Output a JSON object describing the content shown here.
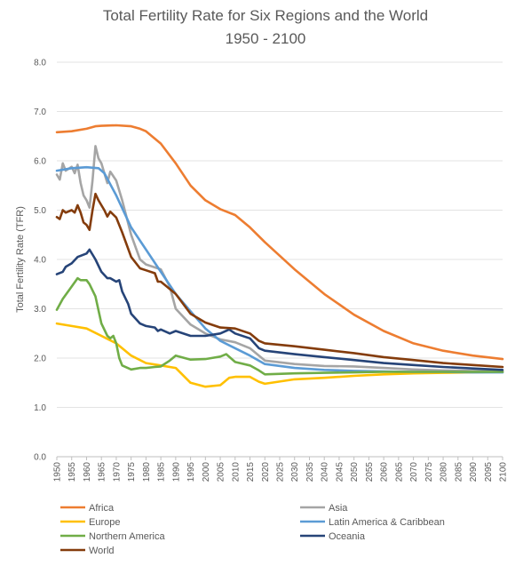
{
  "chart_data": {
    "type": "line",
    "title_lines": [
      "Total Fertility Rate for Six Regions and the World",
      "1950 - 2100"
    ],
    "xlabel": "",
    "ylabel": "Total Fertility Rate (TFR)",
    "xlim": [
      1950,
      2100
    ],
    "ylim": [
      0,
      8
    ],
    "y_ticks": [
      "0.0",
      "1.0",
      "2.0",
      "3.0",
      "4.0",
      "5.0",
      "6.0",
      "7.0",
      "8.0"
    ],
    "x_ticks": [
      "1950",
      "1955",
      "1960",
      "1965",
      "1970",
      "1975",
      "1980",
      "1985",
      "1990",
      "1995",
      "2000",
      "2005",
      "2010",
      "2015",
      "2020",
      "2025",
      "2030",
      "2035",
      "2040",
      "2045",
      "2050",
      "2055",
      "2060",
      "2065",
      "2070",
      "2075",
      "2080",
      "2085",
      "2090",
      "2095",
      "2100"
    ],
    "grid": true,
    "legend_position": "bottom",
    "series": [
      {
        "name": "Africa",
        "color": "#ED7D31",
        "points": [
          [
            1950,
            6.58
          ],
          [
            1955,
            6.6
          ],
          [
            1960,
            6.65
          ],
          [
            1963,
            6.7
          ],
          [
            1965,
            6.71
          ],
          [
            1970,
            6.72
          ],
          [
            1975,
            6.7
          ],
          [
            1978,
            6.65
          ],
          [
            1980,
            6.6
          ],
          [
            1985,
            6.35
          ],
          [
            1990,
            5.95
          ],
          [
            1995,
            5.5
          ],
          [
            2000,
            5.2
          ],
          [
            2005,
            5.02
          ],
          [
            2010,
            4.9
          ],
          [
            2015,
            4.65
          ],
          [
            2020,
            4.35
          ],
          [
            2030,
            3.8
          ],
          [
            2040,
            3.3
          ],
          [
            2050,
            2.88
          ],
          [
            2060,
            2.55
          ],
          [
            2070,
            2.3
          ],
          [
            2080,
            2.15
          ],
          [
            2090,
            2.05
          ],
          [
            2100,
            1.98
          ]
        ]
      },
      {
        "name": "Asia",
        "color": "#A5A5A5",
        "points": [
          [
            1950,
            5.72
          ],
          [
            1951,
            5.62
          ],
          [
            1952,
            5.95
          ],
          [
            1953,
            5.8
          ],
          [
            1955,
            5.88
          ],
          [
            1956,
            5.75
          ],
          [
            1957,
            5.92
          ],
          [
            1958,
            5.55
          ],
          [
            1959,
            5.3
          ],
          [
            1960,
            5.2
          ],
          [
            1961,
            5.05
          ],
          [
            1962,
            5.6
          ],
          [
            1963,
            6.3
          ],
          [
            1964,
            6.05
          ],
          [
            1965,
            5.95
          ],
          [
            1966,
            5.75
          ],
          [
            1967,
            5.55
          ],
          [
            1968,
            5.78
          ],
          [
            1970,
            5.6
          ],
          [
            1972,
            5.2
          ],
          [
            1975,
            4.5
          ],
          [
            1978,
            4.0
          ],
          [
            1980,
            3.9
          ],
          [
            1985,
            3.8
          ],
          [
            1988,
            3.45
          ],
          [
            1990,
            3.0
          ],
          [
            1995,
            2.68
          ],
          [
            2000,
            2.5
          ],
          [
            2005,
            2.38
          ],
          [
            2010,
            2.32
          ],
          [
            2015,
            2.2
          ],
          [
            2018,
            2.05
          ],
          [
            2020,
            1.95
          ],
          [
            2030,
            1.88
          ],
          [
            2040,
            1.84
          ],
          [
            2050,
            1.83
          ],
          [
            2060,
            1.8
          ],
          [
            2070,
            1.77
          ],
          [
            2080,
            1.75
          ],
          [
            2090,
            1.74
          ],
          [
            2100,
            1.74
          ]
        ]
      },
      {
        "name": "Europe",
        "color": "#FFC000",
        "points": [
          [
            1950,
            2.7
          ],
          [
            1955,
            2.65
          ],
          [
            1960,
            2.6
          ],
          [
            1965,
            2.45
          ],
          [
            1970,
            2.3
          ],
          [
            1975,
            2.05
          ],
          [
            1980,
            1.9
          ],
          [
            1985,
            1.85
          ],
          [
            1990,
            1.8
          ],
          [
            1995,
            1.5
          ],
          [
            2000,
            1.42
          ],
          [
            2005,
            1.45
          ],
          [
            2008,
            1.6
          ],
          [
            2010,
            1.62
          ],
          [
            2015,
            1.62
          ],
          [
            2018,
            1.52
          ],
          [
            2020,
            1.48
          ],
          [
            2030,
            1.57
          ],
          [
            2040,
            1.6
          ],
          [
            2050,
            1.64
          ],
          [
            2060,
            1.67
          ],
          [
            2070,
            1.69
          ],
          [
            2080,
            1.7
          ],
          [
            2090,
            1.71
          ],
          [
            2100,
            1.72
          ]
        ]
      },
      {
        "name": "Latin America & Caribbean",
        "color": "#5B9BD5",
        "points": [
          [
            1950,
            5.8
          ],
          [
            1955,
            5.85
          ],
          [
            1960,
            5.87
          ],
          [
            1964,
            5.85
          ],
          [
            1966,
            5.75
          ],
          [
            1970,
            5.3
          ],
          [
            1975,
            4.65
          ],
          [
            1980,
            4.2
          ],
          [
            1985,
            3.75
          ],
          [
            1990,
            3.3
          ],
          [
            1995,
            2.95
          ],
          [
            2000,
            2.6
          ],
          [
            2005,
            2.35
          ],
          [
            2010,
            2.2
          ],
          [
            2015,
            2.05
          ],
          [
            2020,
            1.88
          ],
          [
            2030,
            1.8
          ],
          [
            2040,
            1.76
          ],
          [
            2050,
            1.74
          ],
          [
            2060,
            1.73
          ],
          [
            2070,
            1.72
          ],
          [
            2080,
            1.72
          ],
          [
            2090,
            1.71
          ],
          [
            2100,
            1.71
          ]
        ]
      },
      {
        "name": "Northern America",
        "color": "#70AD47",
        "points": [
          [
            1950,
            2.98
          ],
          [
            1952,
            3.2
          ],
          [
            1955,
            3.45
          ],
          [
            1957,
            3.62
          ],
          [
            1958,
            3.58
          ],
          [
            1960,
            3.58
          ],
          [
            1961,
            3.5
          ],
          [
            1963,
            3.25
          ],
          [
            1965,
            2.7
          ],
          [
            1967,
            2.45
          ],
          [
            1968,
            2.4
          ],
          [
            1969,
            2.45
          ],
          [
            1970,
            2.3
          ],
          [
            1971,
            2.0
          ],
          [
            1972,
            1.85
          ],
          [
            1975,
            1.77
          ],
          [
            1978,
            1.8
          ],
          [
            1980,
            1.8
          ],
          [
            1983,
            1.82
          ],
          [
            1985,
            1.83
          ],
          [
            1988,
            1.95
          ],
          [
            1990,
            2.05
          ],
          [
            1995,
            1.97
          ],
          [
            2000,
            1.98
          ],
          [
            2002,
            2.0
          ],
          [
            2005,
            2.03
          ],
          [
            2007,
            2.08
          ],
          [
            2010,
            1.92
          ],
          [
            2015,
            1.85
          ],
          [
            2018,
            1.75
          ],
          [
            2020,
            1.67
          ],
          [
            2030,
            1.69
          ],
          [
            2040,
            1.7
          ],
          [
            2050,
            1.71
          ],
          [
            2060,
            1.72
          ],
          [
            2070,
            1.72
          ],
          [
            2080,
            1.72
          ],
          [
            2090,
            1.72
          ],
          [
            2100,
            1.72
          ]
        ]
      },
      {
        "name": "Oceania",
        "color": "#264478",
        "points": [
          [
            1950,
            3.7
          ],
          [
            1952,
            3.75
          ],
          [
            1953,
            3.85
          ],
          [
            1955,
            3.92
          ],
          [
            1957,
            4.05
          ],
          [
            1960,
            4.12
          ],
          [
            1961,
            4.2
          ],
          [
            1962,
            4.1
          ],
          [
            1963,
            4.0
          ],
          [
            1965,
            3.75
          ],
          [
            1967,
            3.62
          ],
          [
            1968,
            3.62
          ],
          [
            1970,
            3.55
          ],
          [
            1971,
            3.58
          ],
          [
            1972,
            3.35
          ],
          [
            1974,
            3.1
          ],
          [
            1975,
            2.9
          ],
          [
            1978,
            2.7
          ],
          [
            1980,
            2.65
          ],
          [
            1983,
            2.62
          ],
          [
            1984,
            2.55
          ],
          [
            1985,
            2.58
          ],
          [
            1988,
            2.5
          ],
          [
            1990,
            2.55
          ],
          [
            1995,
            2.45
          ],
          [
            2000,
            2.45
          ],
          [
            2005,
            2.5
          ],
          [
            2008,
            2.58
          ],
          [
            2010,
            2.5
          ],
          [
            2015,
            2.4
          ],
          [
            2018,
            2.2
          ],
          [
            2020,
            2.15
          ],
          [
            2030,
            2.08
          ],
          [
            2040,
            2.02
          ],
          [
            2050,
            1.96
          ],
          [
            2060,
            1.9
          ],
          [
            2070,
            1.86
          ],
          [
            2080,
            1.82
          ],
          [
            2090,
            1.79
          ],
          [
            2100,
            1.76
          ]
        ]
      },
      {
        "name": "World",
        "color": "#843C0C",
        "points": [
          [
            1950,
            4.86
          ],
          [
            1951,
            4.82
          ],
          [
            1952,
            5.0
          ],
          [
            1953,
            4.95
          ],
          [
            1955,
            5.0
          ],
          [
            1956,
            4.95
          ],
          [
            1957,
            5.1
          ],
          [
            1958,
            4.95
          ],
          [
            1959,
            4.75
          ],
          [
            1960,
            4.7
          ],
          [
            1961,
            4.6
          ],
          [
            1962,
            5.0
          ],
          [
            1963,
            5.33
          ],
          [
            1964,
            5.2
          ],
          [
            1965,
            5.1
          ],
          [
            1966,
            5.0
          ],
          [
            1967,
            4.87
          ],
          [
            1968,
            4.97
          ],
          [
            1970,
            4.85
          ],
          [
            1972,
            4.55
          ],
          [
            1975,
            4.05
          ],
          [
            1978,
            3.82
          ],
          [
            1980,
            3.78
          ],
          [
            1983,
            3.72
          ],
          [
            1984,
            3.55
          ],
          [
            1985,
            3.55
          ],
          [
            1988,
            3.4
          ],
          [
            1990,
            3.3
          ],
          [
            1995,
            2.9
          ],
          [
            2000,
            2.72
          ],
          [
            2005,
            2.62
          ],
          [
            2010,
            2.6
          ],
          [
            2015,
            2.5
          ],
          [
            2018,
            2.35
          ],
          [
            2020,
            2.3
          ],
          [
            2030,
            2.24
          ],
          [
            2040,
            2.17
          ],
          [
            2050,
            2.1
          ],
          [
            2060,
            2.02
          ],
          [
            2070,
            1.96
          ],
          [
            2080,
            1.9
          ],
          [
            2090,
            1.86
          ],
          [
            2100,
            1.82
          ]
        ]
      }
    ]
  }
}
